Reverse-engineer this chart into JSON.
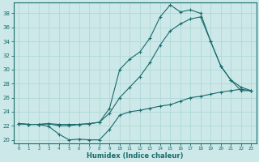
{
  "xlabel": "Humidex (Indice chaleur)",
  "bg_color": "#cce8e8",
  "line_color": "#1a6b6b",
  "grid_color": "#b0d8d8",
  "xlim": [
    -0.5,
    23.5
  ],
  "ylim": [
    19.5,
    39.5
  ],
  "yticks": [
    20,
    22,
    24,
    26,
    28,
    30,
    32,
    34,
    36,
    38
  ],
  "xticks": [
    0,
    1,
    2,
    3,
    4,
    5,
    6,
    7,
    8,
    9,
    10,
    11,
    12,
    13,
    14,
    15,
    16,
    17,
    18,
    19,
    20,
    21,
    22,
    23
  ],
  "xticklabels": [
    "0",
    "1",
    "2",
    "3",
    "4",
    "5",
    "6",
    "7",
    "8",
    "9",
    "10",
    "11",
    "12",
    "13",
    "14",
    "15",
    "16",
    "17",
    "18",
    "19",
    "20",
    "21",
    "22",
    "23"
  ],
  "curve1_x": [
    0,
    1,
    2,
    3,
    4,
    5,
    6,
    7,
    8,
    9,
    10,
    11,
    12,
    13,
    14,
    15,
    16,
    17,
    18,
    19,
    20,
    21,
    22,
    23
  ],
  "curve1_y": [
    22.3,
    22.2,
    22.2,
    21.9,
    20.8,
    20.0,
    20.1,
    20.0,
    20.0,
    21.5,
    23.5,
    24.0,
    24.2,
    24.5,
    24.8,
    25.0,
    25.5,
    26.0,
    26.2,
    26.5,
    26.8,
    27.0,
    27.2,
    27.0
  ],
  "curve2_x": [
    0,
    1,
    2,
    3,
    4,
    5,
    6,
    7,
    8,
    9,
    10,
    11,
    12,
    13,
    14,
    15,
    16,
    17,
    18,
    19,
    20,
    21,
    22,
    23
  ],
  "curve2_y": [
    22.3,
    22.2,
    22.2,
    22.3,
    22.0,
    22.0,
    22.2,
    22.3,
    22.5,
    24.5,
    30.0,
    31.5,
    32.5,
    34.5,
    37.5,
    39.2,
    38.2,
    38.5,
    38.0,
    34.0,
    30.5,
    28.5,
    27.5,
    27.0
  ],
  "curve3_x": [
    0,
    1,
    2,
    3,
    4,
    5,
    6,
    7,
    8,
    9,
    10,
    11,
    12,
    13,
    14,
    15,
    16,
    17,
    18,
    19,
    20,
    21,
    22,
    23
  ],
  "curve3_y": [
    22.3,
    22.2,
    22.2,
    22.3,
    22.2,
    22.2,
    22.2,
    22.3,
    22.5,
    23.8,
    26.0,
    27.5,
    29.0,
    31.0,
    33.5,
    35.5,
    36.5,
    37.2,
    37.5,
    34.0,
    30.5,
    28.5,
    27.0,
    27.0
  ]
}
